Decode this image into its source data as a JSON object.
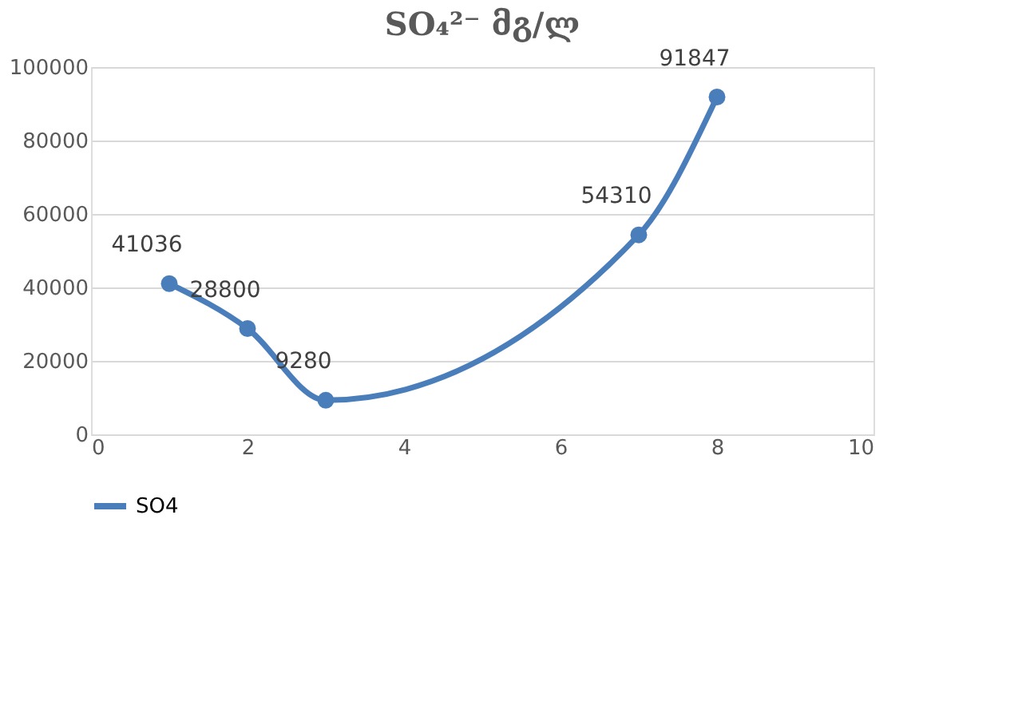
{
  "chart_data": {
    "type": "line",
    "title": "SO₄²⁻ მგ/ლ",
    "x": [
      1,
      2,
      3,
      7,
      8
    ],
    "series": [
      {
        "name": "SO4",
        "color": "#4a7ebb",
        "values": [
          41036,
          28800,
          9280,
          54310,
          91847
        ]
      }
    ],
    "xlim": [
      0,
      10
    ],
    "xticks": [
      0,
      2,
      4,
      6,
      8,
      10
    ],
    "ylim": [
      0,
      100000
    ],
    "yticks": [
      0,
      20000,
      40000,
      60000,
      80000,
      100000
    ],
    "grid": "y",
    "legend": "bottom",
    "marker": "circle",
    "line_style": "solid",
    "data_labels": true
  }
}
